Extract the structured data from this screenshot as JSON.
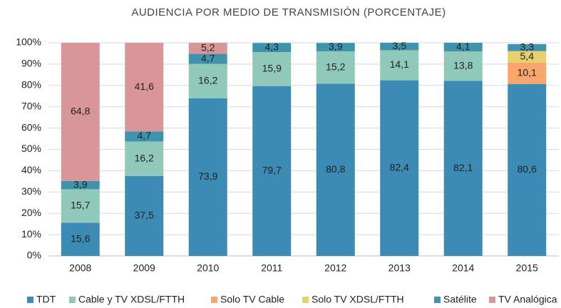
{
  "chart_data": {
    "type": "bar",
    "stacked": true,
    "title": "AUDIENCIA POR MEDIO DE TRANSMISIÓN (PORCENTAJE)",
    "categories": [
      "2008",
      "2009",
      "2010",
      "2011",
      "2012",
      "2013",
      "2014",
      "2015"
    ],
    "series": [
      {
        "name": "TDT",
        "color": "#3b8bb4",
        "values": [
          15.6,
          37.5,
          73.9,
          79.7,
          80.8,
          82.4,
          82.1,
          80.6
        ],
        "value_labels": [
          "15,6",
          "37,5",
          "73,9",
          "79,7",
          "80,8",
          "82,4",
          "82,1",
          "80,6"
        ]
      },
      {
        "name": "Cable y TV XDSL/FTTH",
        "color": "#90c9b9",
        "values": [
          15.7,
          16.2,
          16.2,
          15.9,
          15.2,
          14.1,
          13.8,
          null
        ],
        "value_labels": [
          "15,7",
          "16,2",
          "16,2",
          "15,9",
          "15,2",
          "14,1",
          "13,8",
          null
        ]
      },
      {
        "name": "Solo TV Cable",
        "color": "#f8a66c",
        "values": [
          null,
          null,
          null,
          null,
          null,
          null,
          null,
          10.1
        ],
        "value_labels": [
          null,
          null,
          null,
          null,
          null,
          null,
          null,
          "10,1"
        ]
      },
      {
        "name": "Solo TV XDSL/FTTH",
        "color": "#e6d16b",
        "values": [
          null,
          null,
          null,
          null,
          null,
          null,
          null,
          5.4
        ],
        "value_labels": [
          null,
          null,
          null,
          null,
          null,
          null,
          null,
          "5,4"
        ]
      },
      {
        "name": "Satélite",
        "color": "#3f93ad",
        "values": [
          3.9,
          4.7,
          4.7,
          4.3,
          3.9,
          3.5,
          4.1,
          3.3
        ],
        "value_labels": [
          "3,9",
          "4,7",
          "4,7",
          "4,3",
          "3,9",
          "3,5",
          "4,1",
          "3,3"
        ]
      },
      {
        "name": "TV Analógica",
        "color": "#d99698",
        "values": [
          64.8,
          41.6,
          5.2,
          null,
          null,
          null,
          null,
          null
        ],
        "value_labels": [
          "64,8",
          "41,6",
          "5,2",
          null,
          null,
          null,
          null,
          null
        ]
      }
    ],
    "ylim": [
      0,
      100
    ],
    "yticks": [
      {
        "value": 0,
        "label": "0%"
      },
      {
        "value": 10,
        "label": "10%"
      },
      {
        "value": 20,
        "label": "20%"
      },
      {
        "value": 30,
        "label": "30%"
      },
      {
        "value": 40,
        "label": "40%"
      },
      {
        "value": 50,
        "label": "50%"
      },
      {
        "value": 60,
        "label": "60%"
      },
      {
        "value": 70,
        "label": "70%"
      },
      {
        "value": 80,
        "label": "80%"
      },
      {
        "value": 90,
        "label": "90%"
      },
      {
        "value": 100,
        "label": "100%"
      }
    ],
    "grid": true,
    "legend": "bottom"
  }
}
